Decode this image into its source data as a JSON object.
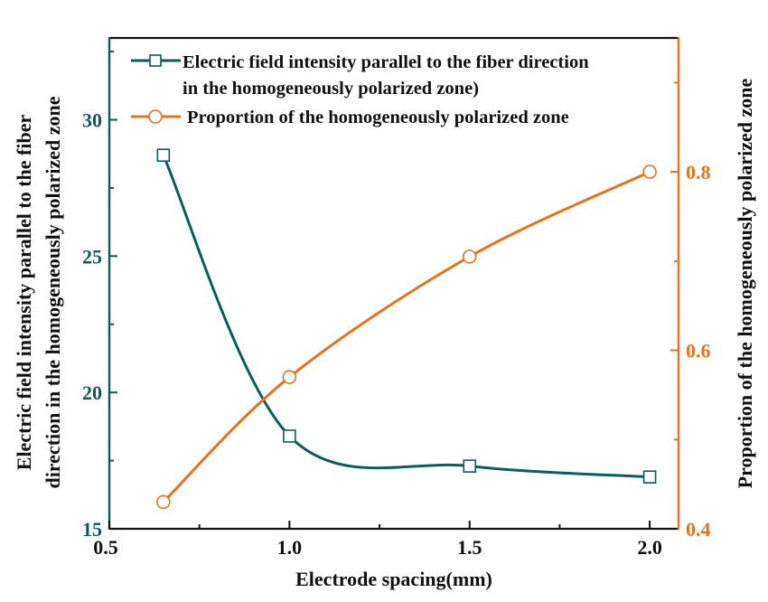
{
  "chart_data": {
    "type": "line",
    "title": "",
    "xlabel": "Electrode spacing(mm)",
    "ylabel_left": [
      "Electric field intensity parallel to the fiber",
      "direction in the homogeneously polarized zone"
    ],
    "ylabel_right": "Proportion of the homogeneously polarized zone",
    "xlim": [
      0.5,
      2.08
    ],
    "ylim_left": [
      15,
      33
    ],
    "ylim_right": [
      0.4,
      0.95
    ],
    "x_ticks": [
      "0.5",
      "1.0",
      "1.5",
      "2.0"
    ],
    "x_tick_values": [
      0.5,
      1.0,
      1.5,
      2.0
    ],
    "y_left_ticks": [
      "15",
      "20",
      "25",
      "30"
    ],
    "y_left_tick_values": [
      15,
      20,
      25,
      30
    ],
    "y_right_ticks": [
      "0.4",
      "0.6",
      "0.8"
    ],
    "y_right_tick_values": [
      0.4,
      0.6,
      0.8
    ],
    "grid": false,
    "legend_placement": "top",
    "x": [
      0.65,
      1.0,
      1.5,
      2.0
    ],
    "series": [
      {
        "name": "Electric field intensity parallel to the fiber direction in the homogeneously polarized zone)",
        "legend_lines": [
          "Electric field intensity parallel to the fiber direction",
          "in the homogeneously polarized zone)"
        ],
        "axis": "left",
        "marker": "square",
        "color": "#0d5c5c",
        "values": [
          28.7,
          18.4,
          17.3,
          16.9
        ]
      },
      {
        "name": "Proportion of the homogeneously polarized zone",
        "legend_lines": [
          "Proportion of the homogeneously polarized zone"
        ],
        "axis": "right",
        "marker": "circle",
        "color": "#e5731e",
        "values": [
          0.43,
          0.57,
          0.705,
          0.8
        ]
      }
    ]
  }
}
